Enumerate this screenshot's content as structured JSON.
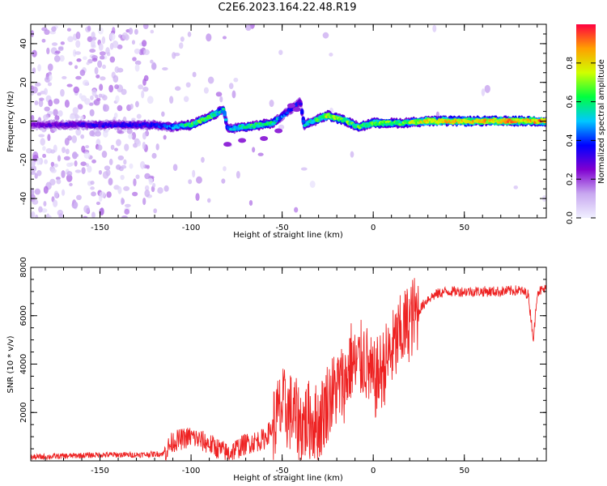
{
  "title": "C2E6.2023.164.22.48.R19",
  "colors": {
    "axis": "#000000",
    "snr_line": "#ee2222",
    "background": "#ffffff"
  },
  "chart_data": [
    {
      "type": "heatmap",
      "xlabel": "Height of straight line (km)",
      "ylabel": "Frequency (Hz)",
      "xlim": [
        -188,
        95
      ],
      "ylim": [
        -50,
        50
      ],
      "x_ticks": [
        -150,
        -100,
        -50,
        0,
        50
      ],
      "y_ticks": [
        -40,
        -20,
        0,
        20,
        40
      ],
      "colorbar": {
        "label": "Normalized spectral amplitude",
        "range": [
          0.0,
          1.0
        ],
        "ticks": [
          "0.0",
          "0.2",
          "0.4",
          "0.6",
          "0.8"
        ],
        "colormap": [
          "#f0f0ff",
          "#c8a8f0",
          "#8000d0",
          "#0000ff",
          "#00c8ff",
          "#00ff40",
          "#d0ff00",
          "#ffa000",
          "#ff0040"
        ]
      },
      "ridge": [
        {
          "x": -188,
          "y": -2,
          "amp": 0.22
        },
        {
          "x": -160,
          "y": -2,
          "amp": 0.28
        },
        {
          "x": -140,
          "y": -2,
          "amp": 0.3
        },
        {
          "x": -120,
          "y": -2,
          "amp": 0.32
        },
        {
          "x": -110,
          "y": -3,
          "amp": 0.4
        },
        {
          "x": -100,
          "y": -2,
          "amp": 0.55
        },
        {
          "x": -90,
          "y": 2,
          "amp": 0.55
        },
        {
          "x": -82,
          "y": 6,
          "amp": 0.45
        },
        {
          "x": -80,
          "y": -4,
          "amp": 0.4
        },
        {
          "x": -70,
          "y": -3,
          "amp": 0.55
        },
        {
          "x": -55,
          "y": -1,
          "amp": 0.5
        },
        {
          "x": -48,
          "y": 4,
          "amp": 0.35
        },
        {
          "x": -40,
          "y": 10,
          "amp": 0.3
        },
        {
          "x": -38,
          "y": -2,
          "amp": 0.45
        },
        {
          "x": -25,
          "y": 3,
          "amp": 0.65
        },
        {
          "x": -15,
          "y": 0,
          "amp": 0.6
        },
        {
          "x": -8,
          "y": -3,
          "amp": 0.55
        },
        {
          "x": 0,
          "y": -1,
          "amp": 0.6
        },
        {
          "x": 15,
          "y": -1,
          "amp": 0.55
        },
        {
          "x": 30,
          "y": 0,
          "amp": 0.7
        },
        {
          "x": 50,
          "y": 0,
          "amp": 0.72
        },
        {
          "x": 70,
          "y": 0,
          "amp": 0.74
        },
        {
          "x": 95,
          "y": 0,
          "amp": 0.78
        }
      ]
    },
    {
      "type": "line",
      "xlabel": "Height of straight line (km)",
      "ylabel": "SNR (10 * v/v)",
      "xlim": [
        -188,
        95
      ],
      "ylim": [
        0,
        8000
      ],
      "x_ticks": [
        -150,
        -100,
        -50,
        0,
        50
      ],
      "y_ticks": [
        2000,
        4000,
        6000,
        8000
      ],
      "series": [
        {
          "x": [
            -188,
            -170,
            -150,
            -130,
            -115,
            -110,
            -100,
            -90,
            -80,
            -75,
            -70,
            -60,
            -55,
            -50,
            -45,
            -40,
            -35,
            -30,
            -25,
            -20,
            -15,
            -12,
            -10,
            -5,
            0,
            5,
            10,
            15,
            20,
            25,
            30,
            35,
            40,
            50,
            60,
            70,
            80,
            85,
            88,
            90,
            95
          ],
          "y": [
            150,
            200,
            250,
            250,
            300,
            800,
            1000,
            700,
            300,
            500,
            700,
            900,
            1400,
            2200,
            2000,
            1500,
            1700,
            1500,
            2500,
            3000,
            3300,
            4200,
            3800,
            4300,
            3200,
            3800,
            4500,
            5200,
            5800,
            6200,
            6700,
            6900,
            7000,
            7000,
            7000,
            7000,
            7050,
            6900,
            5000,
            7000,
            7100
          ]
        }
      ]
    }
  ]
}
